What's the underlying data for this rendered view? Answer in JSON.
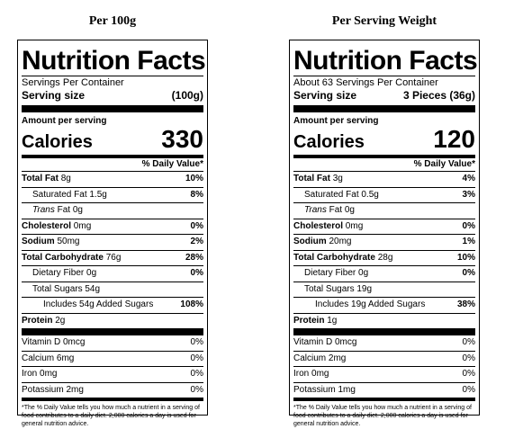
{
  "left": {
    "column_title": "Per 100g",
    "title": "Nutrition Facts",
    "servings": "Servings Per Container",
    "serving_size_label": "Serving size",
    "serving_size_value": "(100g)",
    "amount_per_serving": "Amount per serving",
    "calories_label": "Calories",
    "calories_value": "330",
    "dv_header": "% Daily Value*",
    "total_fat": {
      "label": "Total Fat",
      "amount": "8g",
      "dv": "10%"
    },
    "sat_fat": {
      "label": "Saturated Fat 1.5g",
      "dv": "8%"
    },
    "trans_fat": {
      "label_italic": "Trans",
      "label_rest": " Fat 0g"
    },
    "cholesterol": {
      "label": "Cholesterol",
      "amount": "0mg",
      "dv": "0%"
    },
    "sodium": {
      "label": "Sodium",
      "amount": "50mg",
      "dv": "2%"
    },
    "total_carb": {
      "label": "Total Carbohydrate",
      "amount": "76g",
      "dv": "28%"
    },
    "fiber": {
      "label": "Dietary Fiber 0g",
      "dv": "0%"
    },
    "total_sugars": {
      "label": "Total Sugars 54g"
    },
    "added_sugars": {
      "label": "Includes 54g Added Sugars",
      "dv": "108%"
    },
    "protein": {
      "label": "Protein",
      "amount": "2g"
    },
    "vitamin_d": {
      "label": "Vitamin D 0mcg",
      "dv": "0%"
    },
    "calcium": {
      "label": "Calcium 6mg",
      "dv": "0%"
    },
    "iron": {
      "label": "Iron 0mg",
      "dv": "0%"
    },
    "potassium": {
      "label": "Potassium 2mg",
      "dv": "0%"
    },
    "footnote": "*The % Daily Value tells you how much a nutrient in a serving of food contributes to a daily diet. 2,000 calories a day is used for general nutrition advice."
  },
  "right": {
    "column_title": "Per Serving Weight",
    "title": "Nutrition Facts",
    "servings": "About 63 Servings Per Container",
    "serving_size_label": "Serving size",
    "serving_size_value": "3 Pieces (36g)",
    "amount_per_serving": "Amount per serving",
    "calories_label": "Calories",
    "calories_value": "120",
    "dv_header": "% Daily Value*",
    "total_fat": {
      "label": "Total Fat",
      "amount": "3g",
      "dv": "4%"
    },
    "sat_fat": {
      "label": "Saturated Fat 0.5g",
      "dv": "3%"
    },
    "trans_fat": {
      "label_italic": "Trans",
      "label_rest": " Fat 0g"
    },
    "cholesterol": {
      "label": "Cholesterol",
      "amount": "0mg",
      "dv": "0%"
    },
    "sodium": {
      "label": "Sodium",
      "amount": "20mg",
      "dv": "1%"
    },
    "total_carb": {
      "label": "Total Carbohydrate",
      "amount": "28g",
      "dv": "10%"
    },
    "fiber": {
      "label": "Dietary Fiber 0g",
      "dv": "0%"
    },
    "total_sugars": {
      "label": "Total Sugars 19g"
    },
    "added_sugars": {
      "label": "Includes 19g Added Sugars",
      "dv": "38%"
    },
    "protein": {
      "label": "Protein",
      "amount": "1g"
    },
    "vitamin_d": {
      "label": "Vitamin D 0mcg",
      "dv": "0%"
    },
    "calcium": {
      "label": "Calcium 2mg",
      "dv": "0%"
    },
    "iron": {
      "label": "Iron 0mg",
      "dv": "0%"
    },
    "potassium": {
      "label": "Potassium 1mg",
      "dv": "0%"
    },
    "footnote": "*The % Daily Value tells you how much a nutrient in a serving of food contributes to a daily diet. 2,000 calories a day is used for general nutrition advice."
  }
}
